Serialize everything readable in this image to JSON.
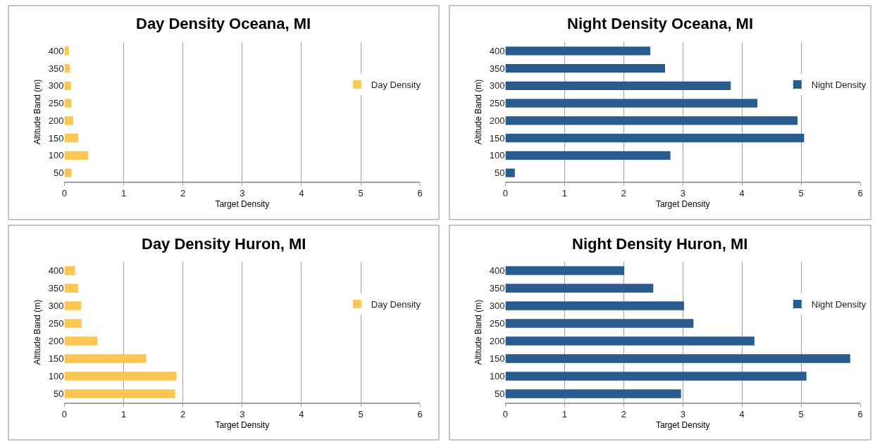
{
  "chart_data": [
    {
      "type": "bar",
      "orientation": "horizontal",
      "title": "Day Density Oceana, MI",
      "xlabel": "Target Density",
      "ylabel": "Altitude Band (m)",
      "categories": [
        "400",
        "350",
        "300",
        "250",
        "200",
        "150",
        "100",
        "50"
      ],
      "series": [
        {
          "name": "Day Density",
          "color": "#fcc653",
          "values": [
            0.075,
            0.09,
            0.11,
            0.12,
            0.15,
            0.23,
            0.4,
            0.12
          ]
        }
      ],
      "xlim": [
        0,
        6
      ],
      "xticks": [
        0,
        1,
        2,
        3,
        4,
        5,
        6
      ],
      "grid": "x",
      "legend": "right"
    },
    {
      "type": "bar",
      "orientation": "horizontal",
      "title": "Night Density Oceana, MI",
      "xlabel": "Target Density",
      "ylabel": "Altitude Band (m)",
      "categories": [
        "400",
        "350",
        "300",
        "250",
        "200",
        "150",
        "100",
        "50"
      ],
      "series": [
        {
          "name": "Night Density",
          "color": "#2a5b8e",
          "values": [
            2.45,
            2.7,
            3.81,
            4.26,
            4.94,
            5.05,
            2.79,
            0.16
          ]
        }
      ],
      "xlim": [
        0,
        6
      ],
      "xticks": [
        0,
        1,
        2,
        3,
        4,
        5,
        6
      ],
      "grid": "x",
      "legend": "right"
    },
    {
      "type": "bar",
      "orientation": "horizontal",
      "title": "Day Density Huron, MI",
      "xlabel": "Target Density",
      "ylabel": "Altitude Band (m)",
      "categories": [
        "400",
        "350",
        "300",
        "250",
        "200",
        "150",
        "100",
        "50"
      ],
      "series": [
        {
          "name": "Day Density",
          "color": "#fcc653",
          "values": [
            0.18,
            0.23,
            0.28,
            0.29,
            0.56,
            1.38,
            1.89,
            1.87
          ]
        }
      ],
      "xlim": [
        0,
        6
      ],
      "xticks": [
        0,
        1,
        2,
        3,
        4,
        5,
        6
      ],
      "grid": "x",
      "legend": "right"
    },
    {
      "type": "bar",
      "orientation": "horizontal",
      "title": "Night Density Huron, MI",
      "xlabel": "Target Density",
      "ylabel": "Altitude Band (m)",
      "categories": [
        "400",
        "350",
        "300",
        "250",
        "200",
        "150",
        "100",
        "50"
      ],
      "series": [
        {
          "name": "Night Density",
          "color": "#2a5b8e",
          "values": [
            2.01,
            2.5,
            3.02,
            3.18,
            4.21,
            5.83,
            5.09,
            2.97
          ]
        }
      ],
      "xlim": [
        0,
        6
      ],
      "xticks": [
        0,
        1,
        2,
        3,
        4,
        5,
        6
      ],
      "grid": "x",
      "legend": "right"
    }
  ]
}
